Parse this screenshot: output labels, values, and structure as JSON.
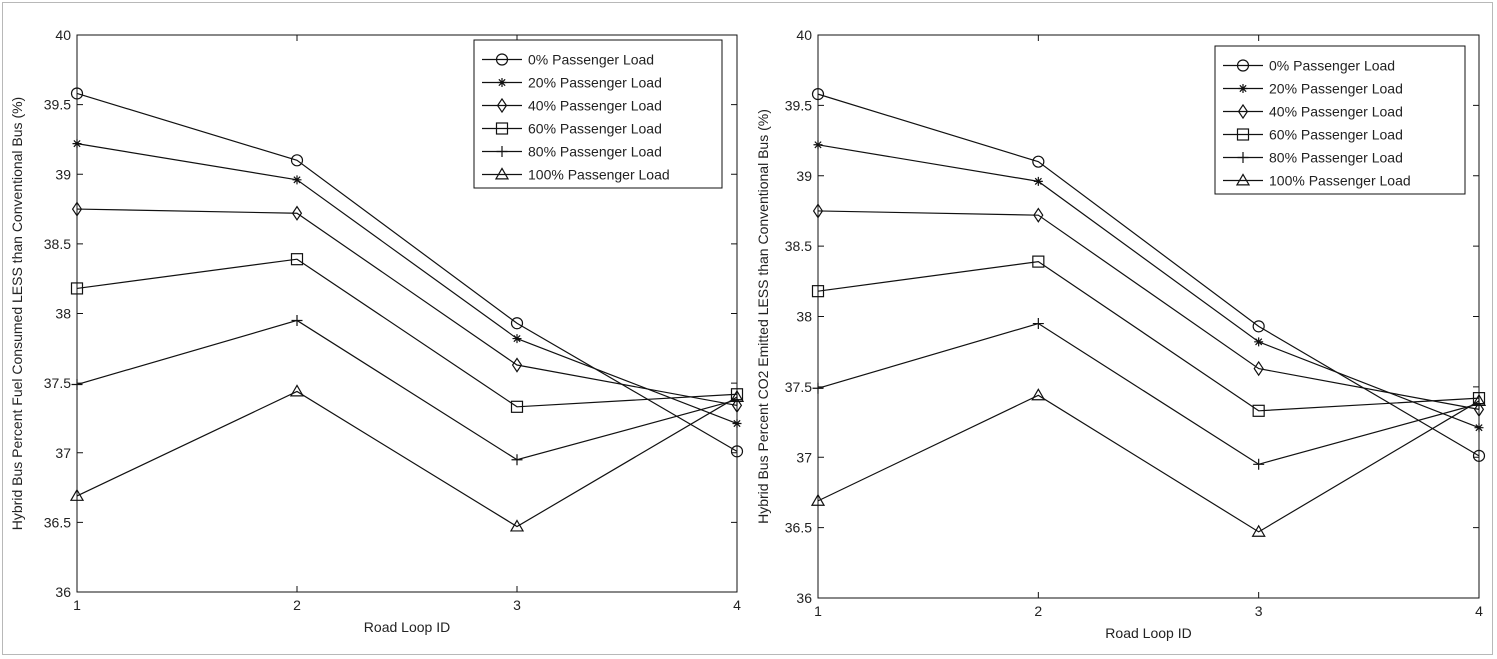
{
  "colors": {
    "line": "#111111",
    "frame": "#b8b8b8"
  },
  "chart_data": [
    {
      "type": "line",
      "title": "",
      "xlabel": "Road Loop ID",
      "ylabel": "Hybrid Bus Percent Fuel Consumed LESS than Conventional Bus (%)",
      "xlim": [
        1,
        4
      ],
      "ylim": [
        36,
        40
      ],
      "x": [
        1,
        2,
        3,
        4
      ],
      "xticks": [
        "1",
        "2",
        "3",
        "4"
      ],
      "yticks": [
        "36",
        "36.5",
        "37",
        "37.5",
        "38",
        "38.5",
        "39",
        "39.5",
        "40"
      ],
      "grid": false,
      "legend_position": "top-right",
      "series": [
        {
          "name": "0% Passenger Load",
          "marker": "circle",
          "values": [
            39.58,
            39.1,
            37.93,
            37.01
          ]
        },
        {
          "name": "20% Passenger Load",
          "marker": "star",
          "values": [
            39.22,
            38.96,
            37.82,
            37.21
          ]
        },
        {
          "name": "40% Passenger Load",
          "marker": "diamond",
          "values": [
            38.75,
            38.72,
            37.63,
            37.34
          ]
        },
        {
          "name": "60% Passenger Load",
          "marker": "square",
          "values": [
            38.18,
            38.39,
            37.33,
            37.42
          ]
        },
        {
          "name": "80% Passenger Load",
          "marker": "plus",
          "values": [
            37.49,
            37.95,
            36.95,
            37.38
          ]
        },
        {
          "name": "100% Passenger Load",
          "marker": "triangle",
          "values": [
            36.69,
            37.44,
            36.47,
            37.4
          ]
        }
      ]
    },
    {
      "type": "line",
      "title": "",
      "xlabel": "Road Loop ID",
      "ylabel": "Hybrid Bus Percent CO2 Emitted LESS than Conventional Bus (%)",
      "xlim": [
        1,
        4
      ],
      "ylim": [
        36,
        40
      ],
      "x": [
        1,
        2,
        3,
        4
      ],
      "xticks": [
        "1",
        "2",
        "3",
        "4"
      ],
      "yticks": [
        "36",
        "36.5",
        "37",
        "37.5",
        "38",
        "38.5",
        "39",
        "39.5",
        "40"
      ],
      "grid": false,
      "legend_position": "top-right",
      "series": [
        {
          "name": "0% Passenger Load",
          "marker": "circle",
          "values": [
            39.58,
            39.1,
            37.93,
            37.01
          ]
        },
        {
          "name": "20% Passenger Load",
          "marker": "star",
          "values": [
            39.22,
            38.96,
            37.82,
            37.21
          ]
        },
        {
          "name": "40% Passenger Load",
          "marker": "diamond",
          "values": [
            38.75,
            38.72,
            37.63,
            37.34
          ]
        },
        {
          "name": "60% Passenger Load",
          "marker": "square",
          "values": [
            38.18,
            38.39,
            37.33,
            37.42
          ]
        },
        {
          "name": "80% Passenger Load",
          "marker": "plus",
          "values": [
            37.49,
            37.95,
            36.95,
            37.38
          ]
        },
        {
          "name": "100% Passenger Load",
          "marker": "triangle",
          "values": [
            36.69,
            37.44,
            36.47,
            37.4
          ]
        }
      ]
    }
  ]
}
